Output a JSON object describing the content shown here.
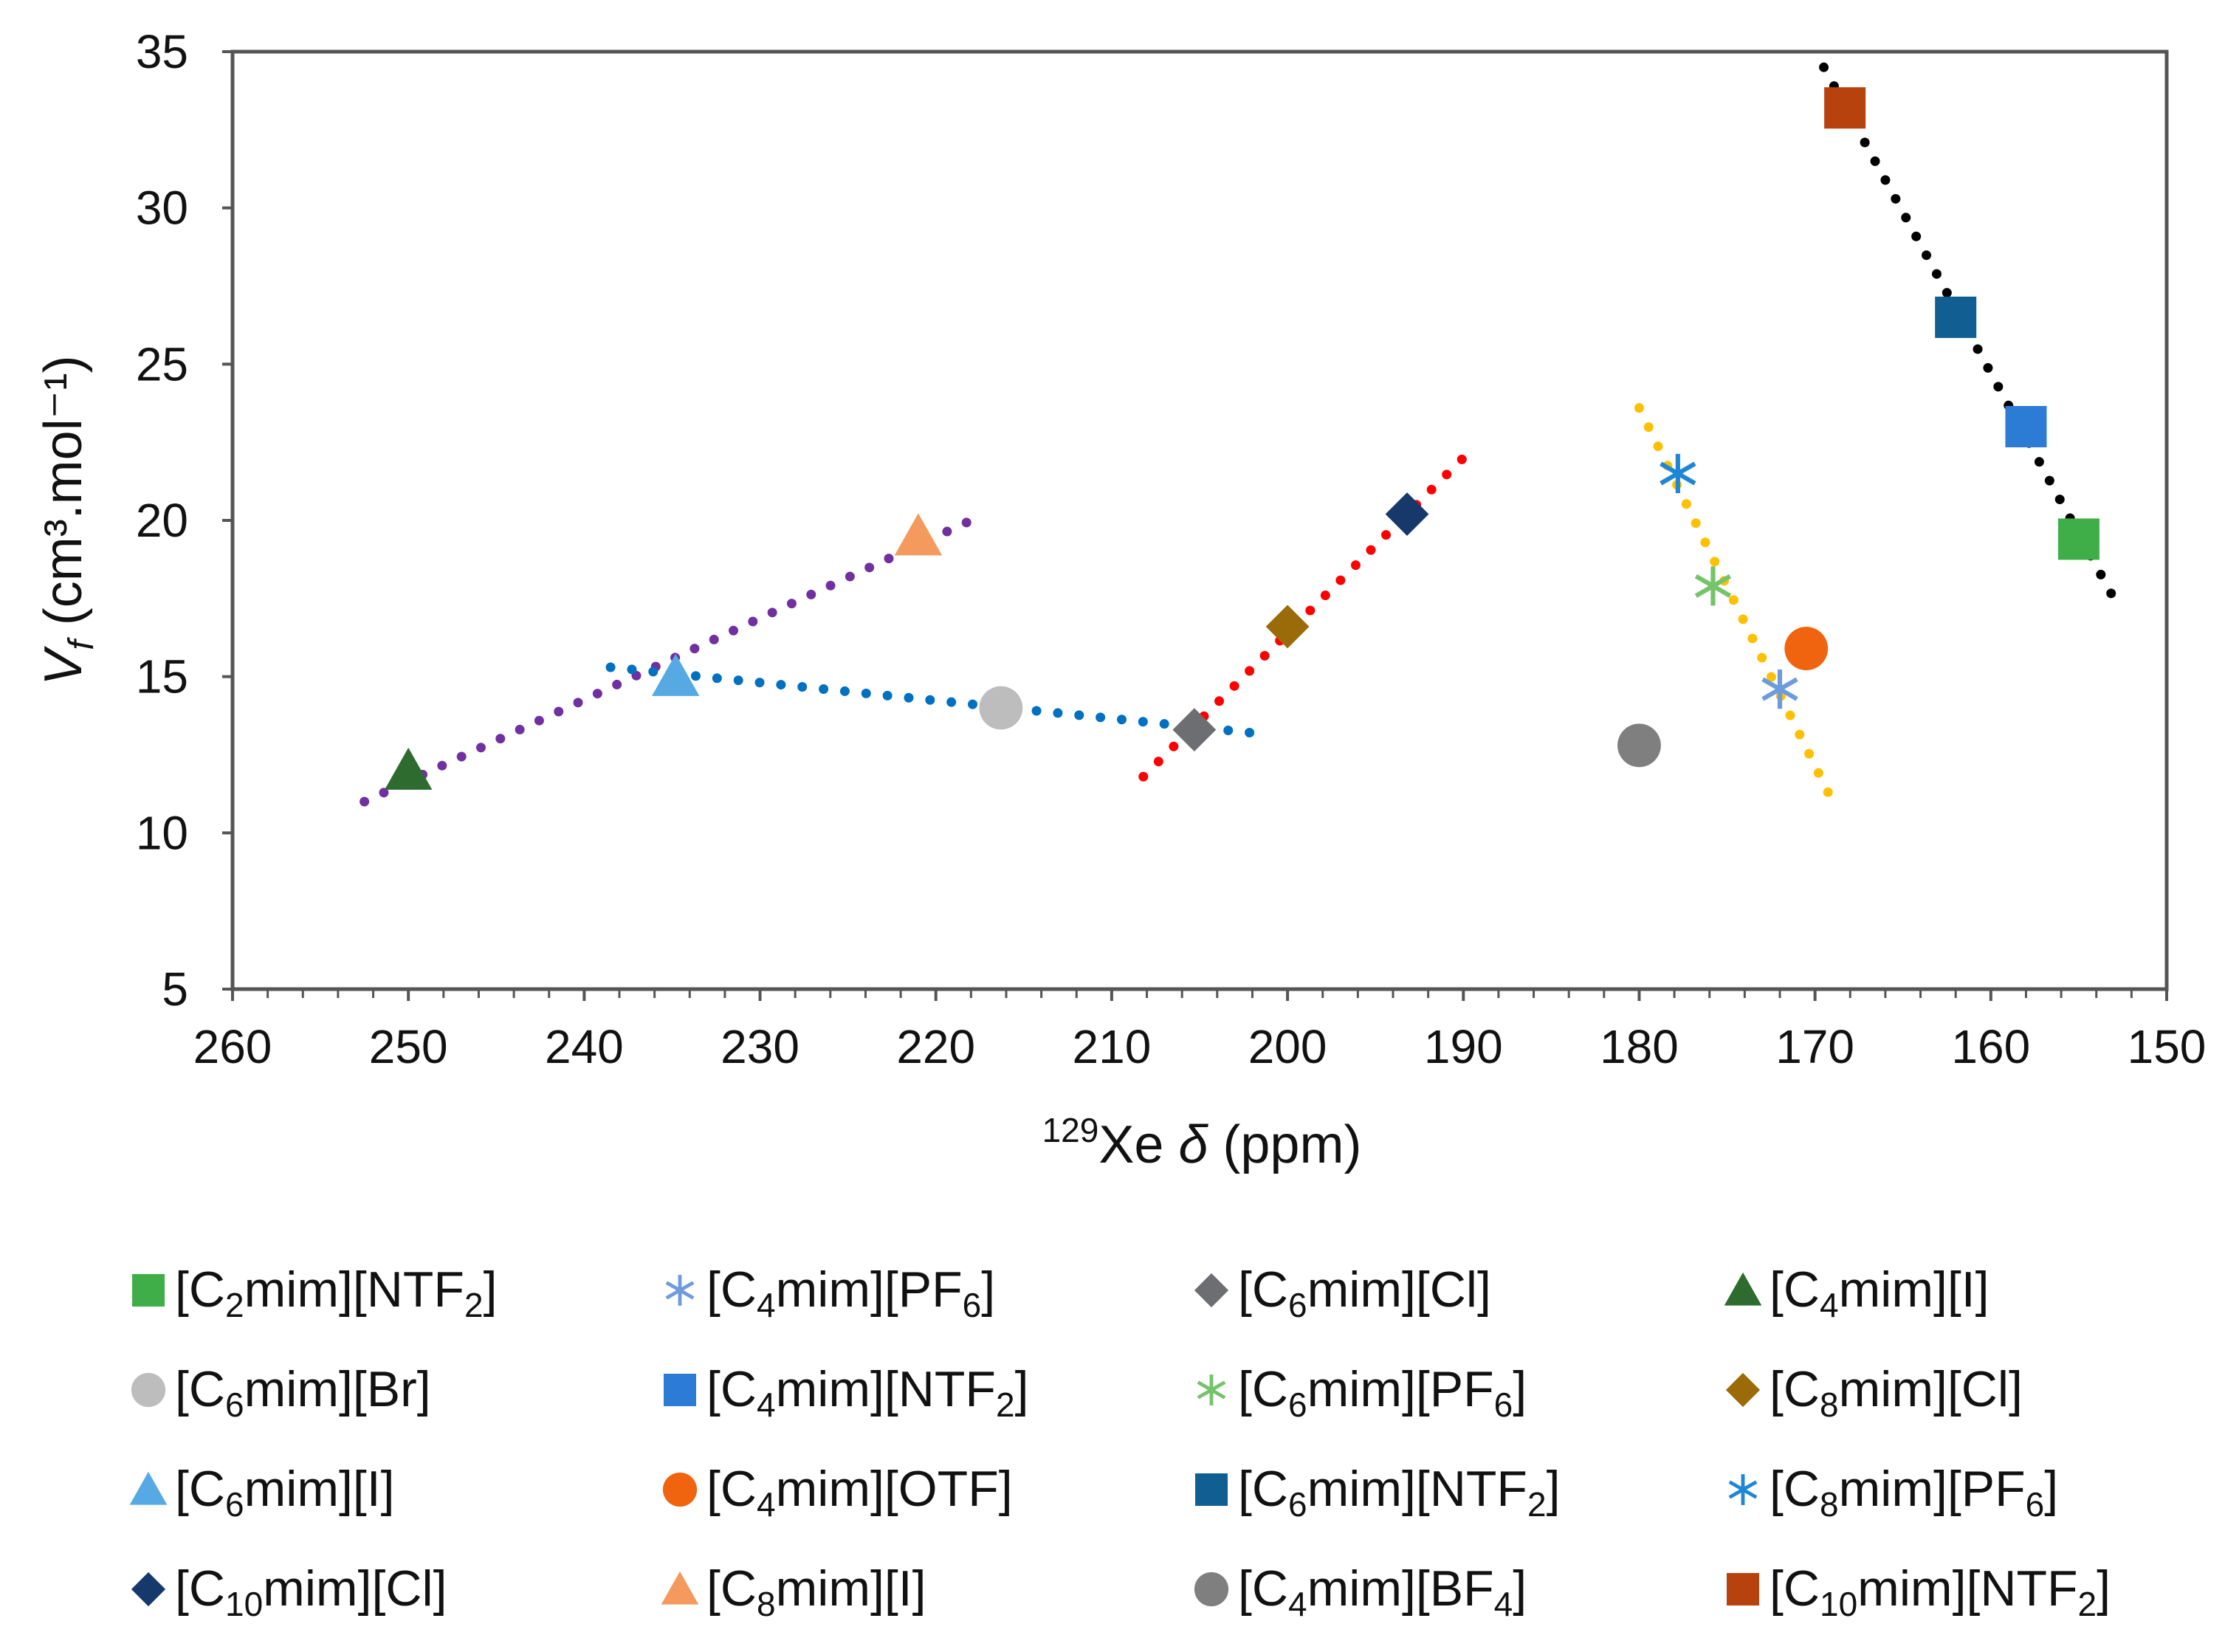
{
  "chart_data": {
    "type": "scatter",
    "xlabel": {
      "sup": "129",
      "main": "Xe ",
      "sym": "δ",
      "rest": " (ppm)"
    },
    "ylabel": {
      "sym": "V",
      "sub": "f",
      "rest": " (cm³.mol⁻¹)"
    },
    "xlim": [
      260,
      150
    ],
    "ylim": [
      5,
      35
    ],
    "xticks": [
      "260",
      "250",
      "240",
      "230",
      "220",
      "210",
      "200",
      "190",
      "180",
      "170",
      "160",
      "150"
    ],
    "yticks": [
      "5",
      "10",
      "15",
      "20",
      "25",
      "30",
      "35"
    ],
    "grid": false,
    "legend_position": "bottom",
    "series": [
      {
        "name": "[C2mim][NTF2]",
        "p": "[C",
        "s": "2",
        "q": "mim][NTF",
        "s2": "2",
        "r": "]",
        "marker": "square",
        "color": "#3FAE49",
        "x": 155.0,
        "y": 19.4
      },
      {
        "name": "[C4mim][PF6]",
        "p": "[C",
        "s": "4",
        "q": "mim][PF",
        "s2": "6",
        "r": "]",
        "marker": "asterisk",
        "color": "#6E9BDB",
        "x": 172.0,
        "y": 14.6
      },
      {
        "name": "[C6mim][Cl]",
        "p": "[C",
        "s": "6",
        "q": "mim][Cl]",
        "s2": "",
        "r": "",
        "marker": "diamond",
        "color": "#6D6E71",
        "x": 205.3,
        "y": 13.3
      },
      {
        "name": "[C4mim][I]",
        "p": "[C",
        "s": "4",
        "q": "mim][I]",
        "s2": "",
        "r": "",
        "marker": "triangle",
        "color": "#2E6B2F",
        "x": 250.0,
        "y": 12.0
      },
      {
        "name": "[C6mim][Br]",
        "p": "[C",
        "s": "6",
        "q": "mim][Br]",
        "s2": "",
        "r": "",
        "marker": "circle",
        "color": "#BDBDBD",
        "x": 216.3,
        "y": 14.0
      },
      {
        "name": "[C4mim][NTF2]",
        "p": "[C",
        "s": "4",
        "q": "mim][NTF",
        "s2": "2",
        "r": "]",
        "marker": "square",
        "color": "#2C7BD4",
        "x": 158.0,
        "y": 23.0
      },
      {
        "name": "[C6mim][PF6]",
        "p": "[C",
        "s": "6",
        "q": "mim][PF",
        "s2": "6",
        "r": "]",
        "marker": "asterisk",
        "color": "#74C46A",
        "x": 175.8,
        "y": 17.9
      },
      {
        "name": "[C8mim][Cl]",
        "p": "[C",
        "s": "8",
        "q": "mim][Cl]",
        "s2": "",
        "r": "",
        "marker": "diamond",
        "color": "#9A6B08",
        "x": 200.0,
        "y": 16.6
      },
      {
        "name": "[C6mim][I]",
        "p": "[C",
        "s": "6",
        "q": "mim][I]",
        "s2": "",
        "r": "",
        "marker": "triangle",
        "color": "#56A9E2",
        "x": 234.8,
        "y": 15.0
      },
      {
        "name": "[C4mim][OTF]",
        "p": "[C",
        "s": "4",
        "q": "mim][OTF]",
        "s2": "",
        "r": "",
        "marker": "circle",
        "color": "#F0640F",
        "x": 170.5,
        "y": 15.9
      },
      {
        "name": "[C6mim][NTF2]",
        "p": "[C",
        "s": "6",
        "q": "mim][NTF",
        "s2": "2",
        "r": "]",
        "marker": "square",
        "color": "#105E92",
        "x": 162.0,
        "y": 26.5
      },
      {
        "name": "[C8mim][PF6]",
        "p": "[C",
        "s": "8",
        "q": "mim][PF",
        "s2": "6",
        "r": "]",
        "marker": "asterisk",
        "color": "#1F86D6",
        "x": 177.8,
        "y": 21.5
      },
      {
        "name": "[C10mim][Cl]",
        "p": "[C",
        "s": "10",
        "q": "mim][Cl]",
        "s2": "",
        "r": "",
        "marker": "diamond",
        "color": "#16386B",
        "x": 193.2,
        "y": 20.2
      },
      {
        "name": "[C8mim][I]",
        "p": "[C",
        "s": "8",
        "q": "mim][I]",
        "s2": "",
        "r": "",
        "marker": "triangle",
        "color": "#F49A5E",
        "x": 221.0,
        "y": 19.5
      },
      {
        "name": "[C4mim][BF4]",
        "p": "[C",
        "s": "4",
        "q": "mim][BF",
        "s2": "4",
        "r": "]",
        "marker": "circle",
        "color": "#7F7F7F",
        "x": 180.0,
        "y": 12.8
      },
      {
        "name": "[C10mim][NTF2]",
        "p": "[C",
        "s": "10",
        "q": "mim][NTF",
        "s2": "2",
        "r": "]",
        "marker": "square",
        "color": "#B8420D",
        "x": 168.3,
        "y": 33.2
      }
    ],
    "trendlines": [
      {
        "color": "#7030A0",
        "x": [
          252.5,
          218.0
        ],
        "y": [
          11.0,
          20.0
        ]
      },
      {
        "color": "#0070C0",
        "x": [
          238.5,
          202.0
        ],
        "y": [
          15.3,
          13.2
        ]
      },
      {
        "color": "#FF0000",
        "x": [
          208.2,
          190.0
        ],
        "y": [
          11.8,
          22.0
        ]
      },
      {
        "color": "#FFC000",
        "x": [
          180.0,
          169.0
        ],
        "y": [
          23.6,
          11.0
        ]
      },
      {
        "color": "#000000",
        "x": [
          169.5,
          153.0
        ],
        "y": [
          34.5,
          17.5
        ]
      }
    ]
  }
}
